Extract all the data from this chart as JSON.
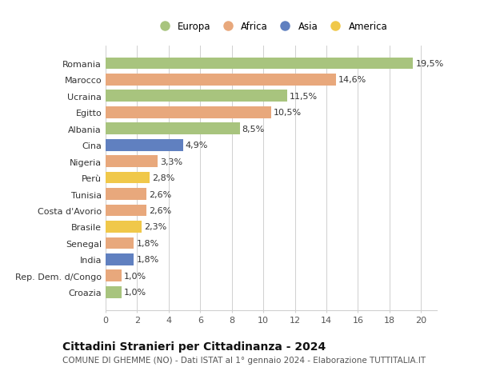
{
  "countries": [
    "Romania",
    "Marocco",
    "Ucraina",
    "Egitto",
    "Albania",
    "Cina",
    "Nigeria",
    "Perù",
    "Tunisia",
    "Costa d'Avorio",
    "Brasile",
    "Senegal",
    "India",
    "Rep. Dem. d/Congo",
    "Croazia"
  ],
  "values": [
    19.5,
    14.6,
    11.5,
    10.5,
    8.5,
    4.9,
    3.3,
    2.8,
    2.6,
    2.6,
    2.3,
    1.8,
    1.8,
    1.0,
    1.0
  ],
  "labels": [
    "19,5%",
    "14,6%",
    "11,5%",
    "10,5%",
    "8,5%",
    "4,9%",
    "3,3%",
    "2,8%",
    "2,6%",
    "2,6%",
    "2,3%",
    "1,8%",
    "1,8%",
    "1,0%",
    "1,0%"
  ],
  "continents": [
    "Europa",
    "Africa",
    "Europa",
    "Africa",
    "Europa",
    "Asia",
    "Africa",
    "America",
    "Africa",
    "Africa",
    "America",
    "Africa",
    "Asia",
    "Africa",
    "Europa"
  ],
  "colors": {
    "Europa": "#a8c47e",
    "Africa": "#e8a87c",
    "Asia": "#6080c0",
    "America": "#f0c84a"
  },
  "legend_order": [
    "Europa",
    "Africa",
    "Asia",
    "America"
  ],
  "xlim": [
    0,
    21
  ],
  "xticks": [
    0,
    2,
    4,
    6,
    8,
    10,
    12,
    14,
    16,
    18,
    20
  ],
  "title": "Cittadini Stranieri per Cittadinanza - 2024",
  "subtitle": "COMUNE DI GHEMME (NO) - Dati ISTAT al 1° gennaio 2024 - Elaborazione TUTTITALIA.IT",
  "background_color": "#ffffff",
  "grid_color": "#d0d0d0",
  "bar_height": 0.72,
  "label_fontsize": 8,
  "tick_fontsize": 8,
  "title_fontsize": 10,
  "subtitle_fontsize": 7.5
}
